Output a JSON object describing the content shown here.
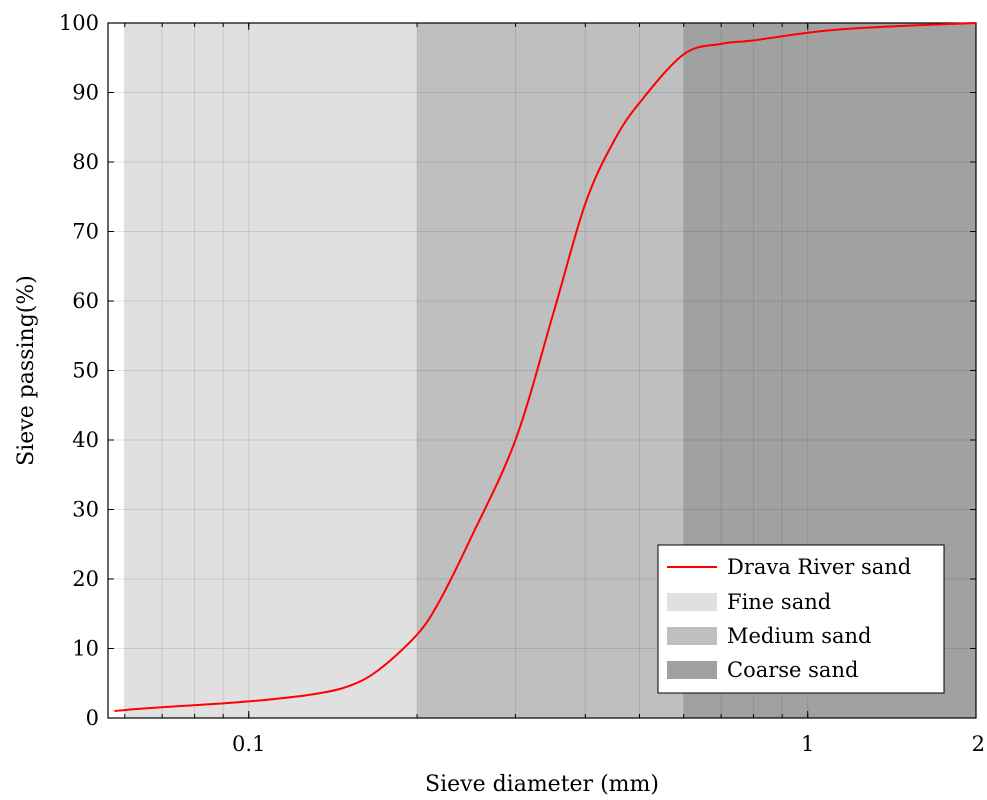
{
  "chart_data": {
    "type": "line",
    "xlabel": "Sieve diameter (mm)",
    "ylabel": "Sieve passing(%)",
    "xscale": "log",
    "xlim": [
      0.056,
      2
    ],
    "ylim": [
      0,
      100
    ],
    "grid": true,
    "legend_position": "bottom-right",
    "x_ticks": [
      {
        "value": 0.1,
        "label": "0.1"
      },
      {
        "value": 1,
        "label": "1"
      },
      {
        "value": 2,
        "label": "2"
      }
    ],
    "y_ticks": [
      {
        "value": 0,
        "label": "0"
      },
      {
        "value": 10,
        "label": "10"
      },
      {
        "value": 20,
        "label": "20"
      },
      {
        "value": 30,
        "label": "30"
      },
      {
        "value": 40,
        "label": "40"
      },
      {
        "value": 50,
        "label": "50"
      },
      {
        "value": 60,
        "label": "60"
      },
      {
        "value": 70,
        "label": "70"
      },
      {
        "value": 80,
        "label": "80"
      },
      {
        "value": 90,
        "label": "90"
      },
      {
        "value": 100,
        "label": "100"
      }
    ],
    "bands": [
      {
        "name": "Fine sand",
        "from": 0.06,
        "to": 0.2,
        "color": "#e0e0e0"
      },
      {
        "name": "Medium sand",
        "from": 0.2,
        "to": 0.6,
        "color": "#bfbfbf"
      },
      {
        "name": "Coarse sand",
        "from": 0.6,
        "to": 2,
        "color": "#a1a1a1"
      }
    ],
    "series": [
      {
        "name": "Drava River sand",
        "color": "#ff0000",
        "x": [
          0.0575,
          0.063,
          0.075,
          0.09,
          0.1,
          0.11,
          0.13,
          0.15,
          0.17,
          0.2,
          0.22,
          0.25,
          0.3,
          0.35,
          0.4,
          0.45,
          0.5,
          0.6,
          0.7,
          0.8,
          1.0,
          1.2,
          1.5,
          2.0
        ],
        "y": [
          1.0,
          1.3,
          1.7,
          2.1,
          2.4,
          2.7,
          3.4,
          4.5,
          6.8,
          12.0,
          17.0,
          26.0,
          40.0,
          58.0,
          74.0,
          83.0,
          88.5,
          95.5,
          97.0,
          97.5,
          98.6,
          99.2,
          99.6,
          100.0
        ]
      }
    ]
  }
}
